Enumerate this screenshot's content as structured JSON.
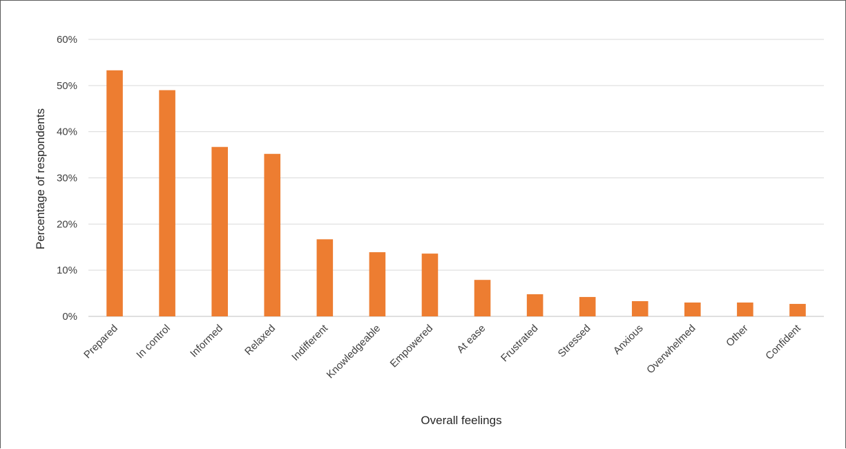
{
  "chart_data": {
    "type": "bar",
    "categories": [
      "Prepared",
      "In control",
      "Informed",
      "Relaxed",
      "Indifferent",
      "Knowledgeable",
      "Empowered",
      "At ease",
      "Frustrated",
      "Stressed",
      "Anxious",
      "Overwhelmed",
      "Other",
      "Confident"
    ],
    "values": [
      53.3,
      49.0,
      36.7,
      35.2,
      16.7,
      13.9,
      13.6,
      7.9,
      4.8,
      4.2,
      3.3,
      3.0,
      3.0,
      2.7
    ],
    "xlabel": "Overall feelings",
    "ylabel": "Percentage of respondents",
    "ylim": [
      0,
      60
    ],
    "yticks": [
      0,
      10,
      20,
      30,
      40,
      50,
      60
    ],
    "ytick_labels": [
      "0%",
      "10%",
      "20%",
      "30%",
      "40%",
      "50%",
      "60%"
    ],
    "grid": true,
    "legend": "none",
    "bar_color": "#ED7D31"
  }
}
